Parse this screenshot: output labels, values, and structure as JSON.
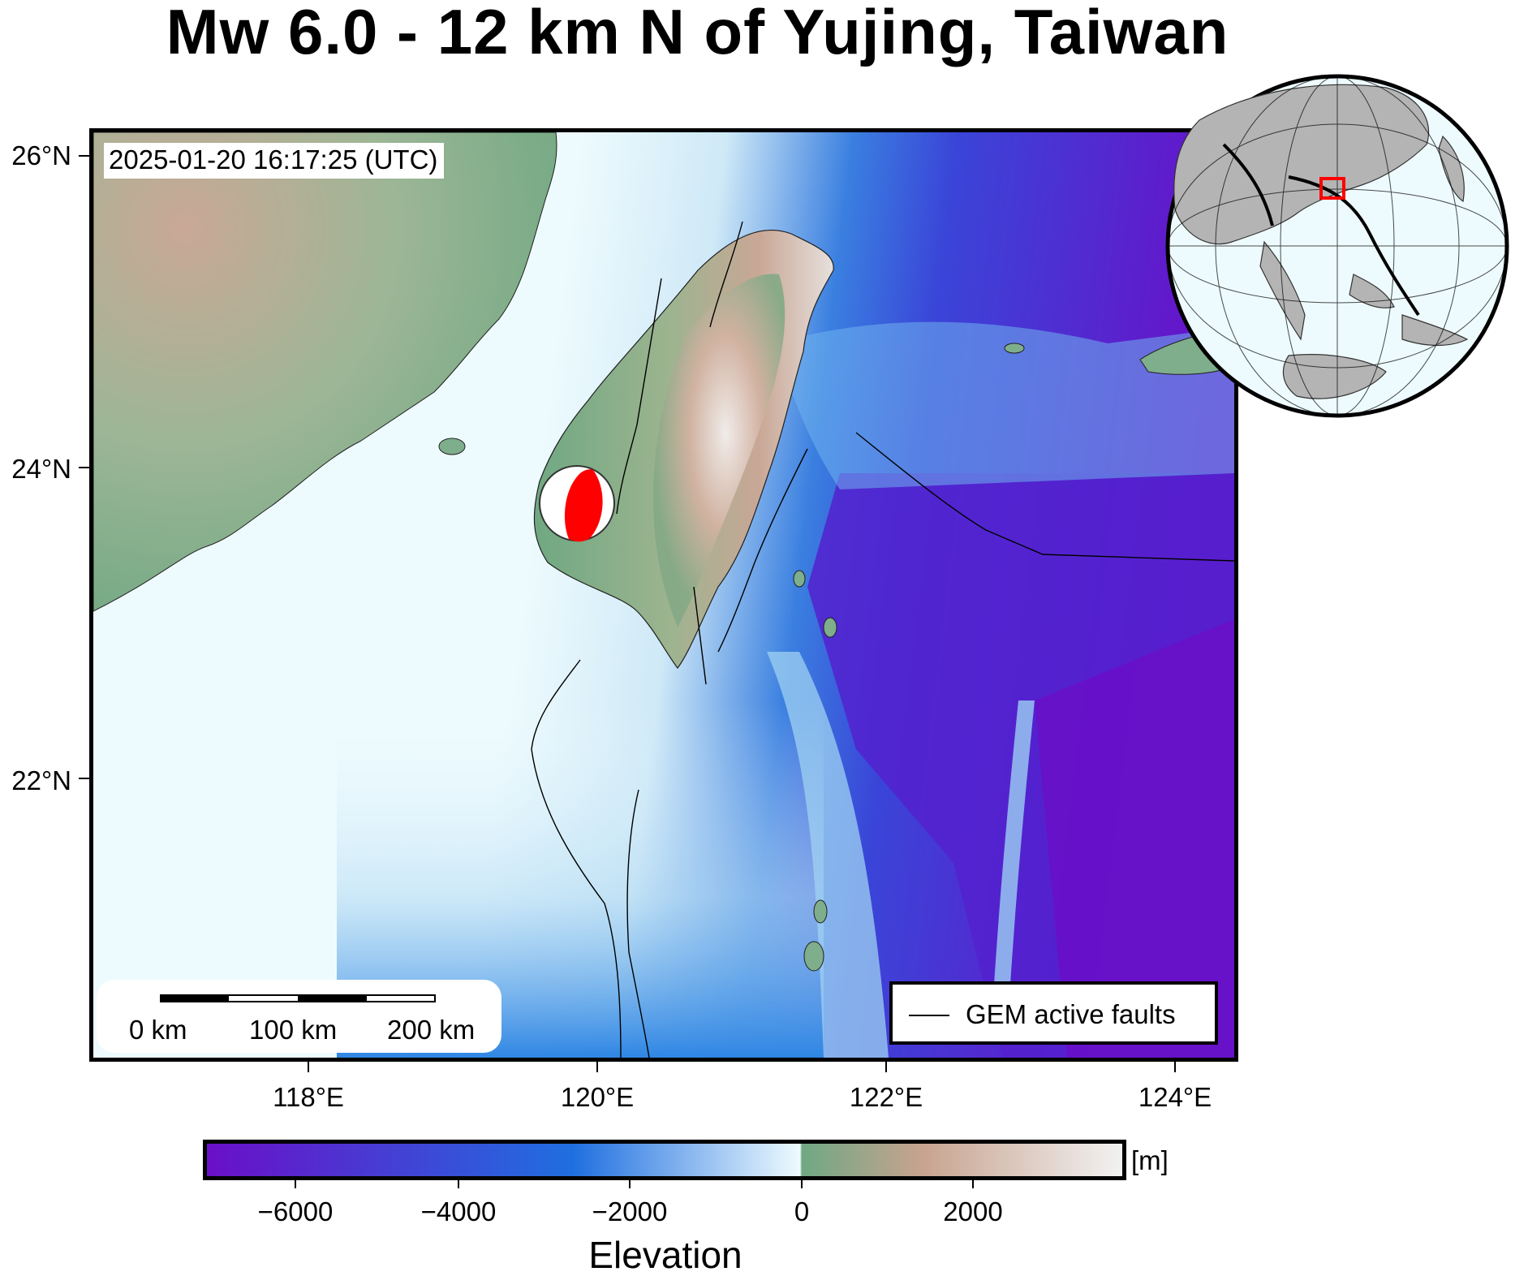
{
  "title": "Mw 6.0 - 12 km N of Yujing, Taiwan",
  "timestamp": "2025-01-20 16:17:25 (UTC)",
  "map": {
    "region": {
      "lon_min": 116.45,
      "lon_max": 124.45,
      "lat_min": 20.45,
      "lat_max": 26.15
    },
    "lat_labels": [
      "26°N",
      "24°N",
      "22°N"
    ],
    "lon_labels": [
      "118°E",
      "120°E",
      "122°E",
      "124°E"
    ],
    "epicenter": {
      "lon": 120.45,
      "lat": 23.15,
      "mechanism": "focal-mechanism-beachball",
      "fill_color": "#ff0000"
    },
    "scalebar": {
      "labels": [
        "0 km",
        "100 km",
        "200 km"
      ]
    },
    "legend": {
      "label": "GEM active faults"
    },
    "colors": {
      "ocean_deep": "#6a0fc8",
      "ocean_mid": "#1f6fe0",
      "ocean_shallow": "#eefbfe",
      "land_low": "#6fa882",
      "land_mid": "#c7a38f",
      "land_high": "#f2f2f2",
      "inset_box": "#ff0000"
    }
  },
  "inset": {
    "type": "orthographic-globe",
    "land_color": "#b4b4b4",
    "ocean_color": "#eefbfe",
    "highlight": "red-rectangle-taiwan"
  },
  "colorbar": {
    "labels": [
      "−6000",
      "−4000",
      "−2000",
      "0",
      "2000"
    ],
    "unit": "[m]",
    "title": "Elevation",
    "range": [
      -7000,
      3700
    ]
  }
}
